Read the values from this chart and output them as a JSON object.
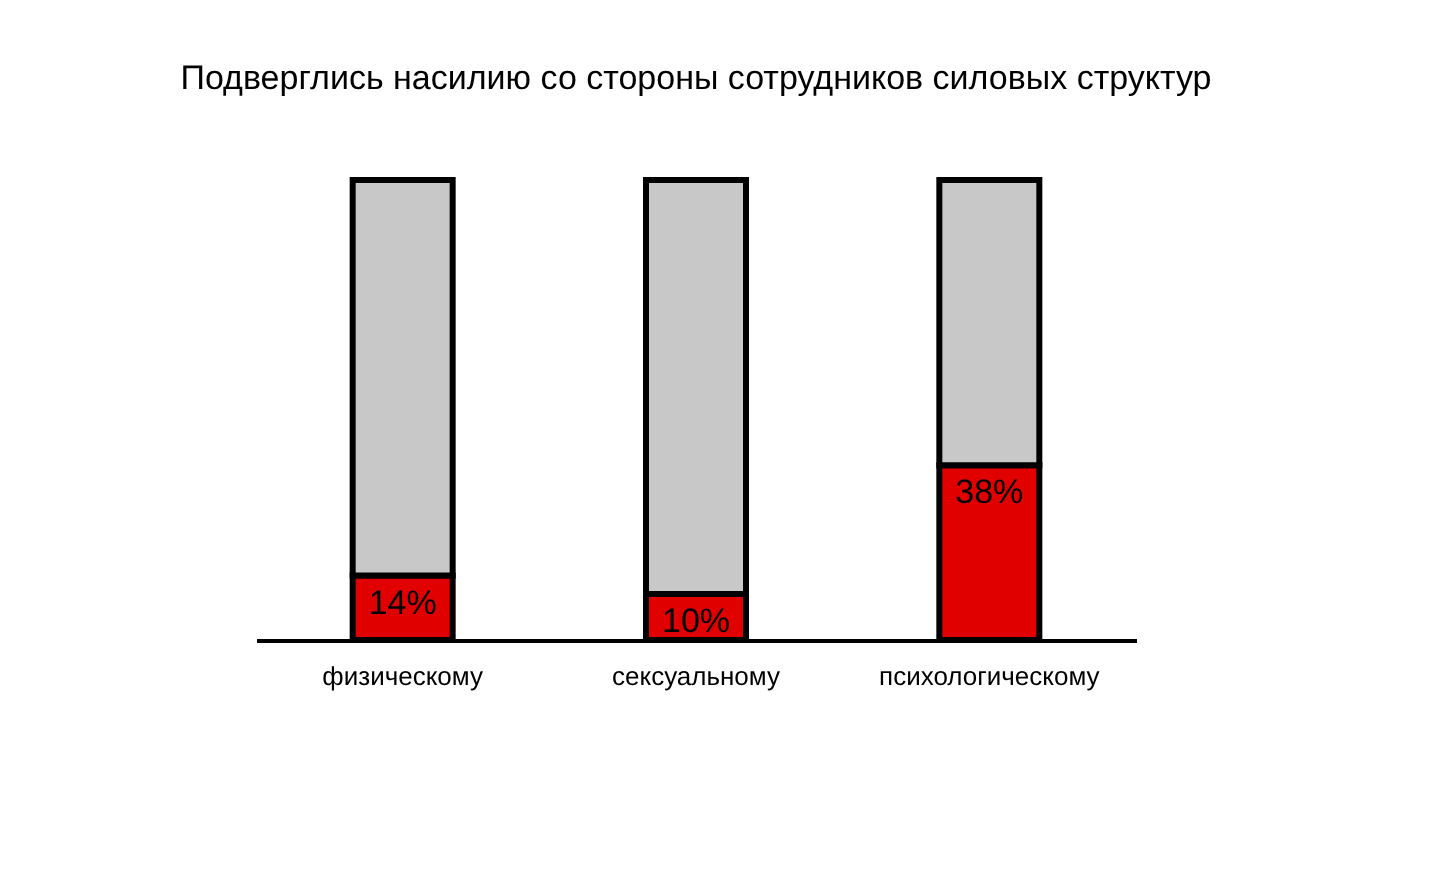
{
  "chart_data": {
    "type": "bar",
    "title": "Подверглись насилию со стороны сотрудников силовых структур",
    "categories": [
      "физическому",
      "сексуальному",
      "психологическому"
    ],
    "stacked": true,
    "ylim": [
      0,
      100
    ],
    "tick_labels": "x",
    "legend": false,
    "series": [
      {
        "color": "#e00000",
        "values": [
          14,
          10,
          38
        ],
        "value_labels": [
          "14%",
          "10%",
          "38%"
        ]
      },
      {
        "color": "#c8c8c8",
        "values": [
          86,
          90,
          62
        ]
      }
    ]
  }
}
